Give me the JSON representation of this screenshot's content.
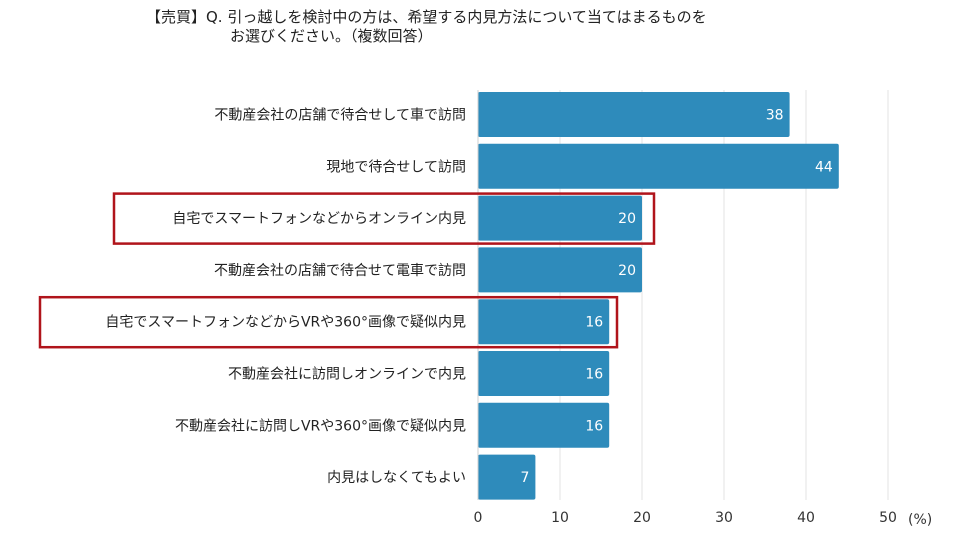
{
  "title_line1": "【売買】Q. 引っ越しを検討中の方は、希望する内見方法について当てはまるものを",
  "title_line2": "お選びください。（複数回答）",
  "bar_color": "#2e8bbb",
  "highlight_color": "#b0141b",
  "chart_data": {
    "type": "bar",
    "orientation": "horizontal",
    "title": "【売買】Q. 引っ越しを検討中の方は、希望する内見方法について当てはまるものをお選びください。（複数回答）",
    "xlabel": "(%)",
    "ylabel": "",
    "xlim": [
      0,
      50
    ],
    "xticks": [
      0,
      10,
      20,
      30,
      40,
      50
    ],
    "unit": "(%)",
    "categories": [
      "不動産会社の店舗で待合せして車で訪問",
      "現地で待合せして訪問",
      "自宅でスマートフォンなどからオンライン内見",
      "不動産会社の店舗で待合せて電車で訪問",
      "自宅でスマートフォンなどからVRや360°画像で疑似内見",
      "不動産会社に訪問しオンラインで内見",
      "不動産会社に訪問しVRや360°画像で疑似内見",
      "内見はしなくてもよい"
    ],
    "values": [
      38,
      44,
      20,
      20,
      16,
      16,
      16,
      7
    ],
    "highlighted": [
      2,
      4
    ]
  }
}
